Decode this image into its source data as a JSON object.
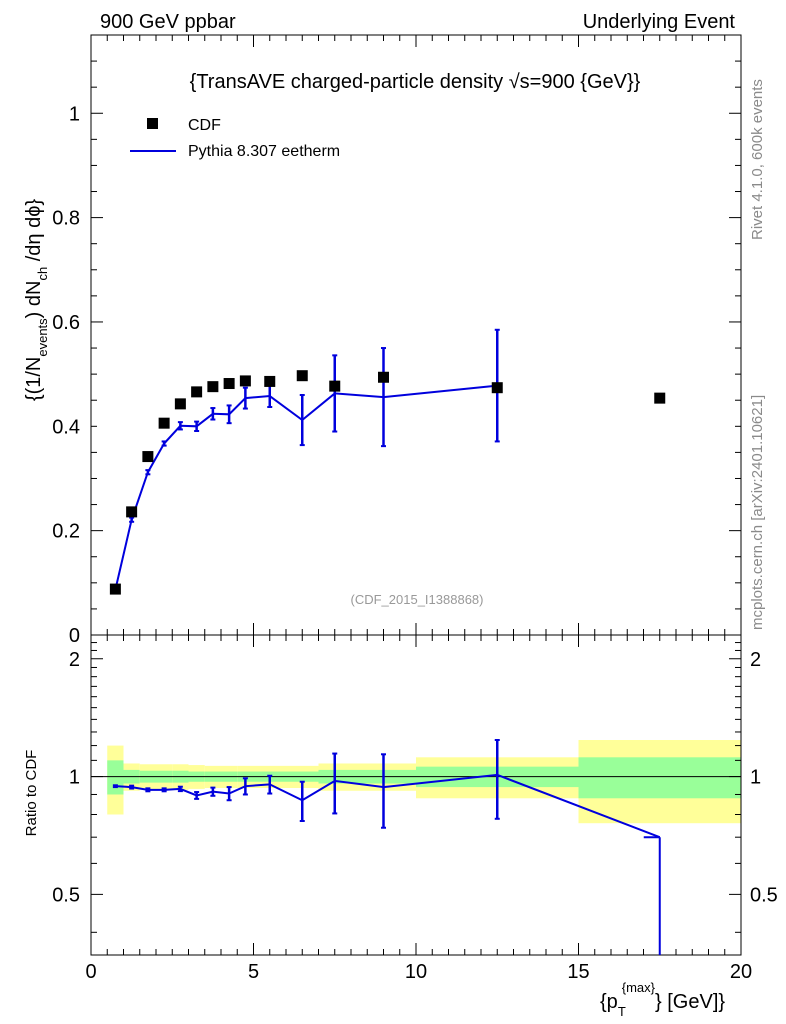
{
  "header": {
    "left": "900 GeV ppbar",
    "right": "Underlying Event"
  },
  "side": {
    "rivet": "Rivet 4.1.0,  600k events",
    "mcplots": "mcplots.cern.ch [arXiv:2401.10621]"
  },
  "chart_data": {
    "type": "scatter",
    "title": "{TransAVE charged-particle density √s=900 {GeV}}",
    "analysis_id": "(CDF_2015_I1388868)",
    "xlabel": "{p_T^{max}} [GeV]",
    "xlabel_parts": {
      "open": "{p",
      "sub": "T",
      "sup": "{max}",
      "close": "} [GeV]}"
    },
    "ylabel": "{(1/N_events) dN_ch /dη dϕ}",
    "ylabel_parts": {
      "a": "{(1/N",
      "b": "events",
      "c": ") dN",
      "d": "ch",
      "e": " /dη  dϕ}"
    },
    "ratio_ylabel": "Ratio to CDF",
    "xlim": [
      0,
      20
    ],
    "ylim": [
      0,
      1.15
    ],
    "ratio_ylim": [
      0.35,
      2.3
    ],
    "x_ticks": [
      "0",
      "5",
      "10",
      "15",
      "20"
    ],
    "y_ticks": [
      "0",
      "0.2",
      "0.4",
      "0.6",
      "0.8",
      "1"
    ],
    "ratio_ticks": [
      "0.5",
      "1",
      "2"
    ],
    "legend": [
      {
        "name": "CDF",
        "marker": "square",
        "color": "#000000"
      },
      {
        "name": "Pythia 8.307 eetherm",
        "marker": "line",
        "color": "#0000dd"
      }
    ],
    "data": {
      "name": "CDF",
      "x": [
        0.75,
        1.25,
        1.75,
        2.25,
        2.75,
        3.25,
        3.75,
        4.25,
        4.75,
        5.5,
        6.5,
        7.5,
        9.0,
        12.5,
        17.5
      ],
      "y": [
        0.088,
        0.236,
        0.342,
        0.406,
        0.443,
        0.466,
        0.476,
        0.482,
        0.487,
        0.486,
        0.497,
        0.477,
        0.494,
        0.474,
        0.454
      ]
    },
    "mc": {
      "name": "Pythia 8.307 eetherm",
      "x": [
        0.75,
        1.25,
        1.75,
        2.25,
        2.75,
        3.25,
        3.75,
        4.25,
        4.75,
        5.5,
        6.5,
        7.5,
        9.0,
        12.5
      ],
      "y": [
        0.087,
        0.221,
        0.312,
        0.367,
        0.401,
        0.4,
        0.424,
        0.423,
        0.454,
        0.458,
        0.412,
        0.463,
        0.456,
        0.478
      ],
      "yerr": [
        0.002,
        0.004,
        0.004,
        0.004,
        0.007,
        0.009,
        0.011,
        0.017,
        0.02,
        0.021,
        0.048,
        0.073,
        0.094,
        0.107
      ]
    },
    "ratio": {
      "mc_x": [
        0.75,
        1.25,
        1.75,
        2.25,
        2.75,
        3.25,
        3.75,
        4.25,
        4.75,
        5.5,
        6.5,
        7.5,
        9.0,
        12.5,
        17.5
      ],
      "mc_y": [
        0.945,
        0.94,
        0.925,
        0.925,
        0.93,
        0.895,
        0.915,
        0.905,
        0.945,
        0.955,
        0.87,
        0.975,
        0.94,
        1.01,
        0.7
      ],
      "mc_err": [
        0.005,
        0.008,
        0.008,
        0.008,
        0.012,
        0.018,
        0.022,
        0.035,
        0.045,
        0.05,
        0.1,
        0.17,
        0.2,
        0.23,
        0
      ],
      "last_drop_to": 0.35,
      "bands": [
        {
          "x": [
            0.5,
            1.0
          ],
          "g": 0.1,
          "yl": 0.2
        },
        {
          "x": [
            1.0,
            1.5
          ],
          "g": 0.04,
          "yl": 0.08
        },
        {
          "x": [
            1.5,
            2.0
          ],
          "g": 0.035,
          "yl": 0.075
        },
        {
          "x": [
            2.0,
            2.5
          ],
          "g": 0.035,
          "yl": 0.075
        },
        {
          "x": [
            2.5,
            3.0
          ],
          "g": 0.035,
          "yl": 0.075
        },
        {
          "x": [
            3.0,
            3.5
          ],
          "g": 0.03,
          "yl": 0.07
        },
        {
          "x": [
            3.5,
            4.0
          ],
          "g": 0.03,
          "yl": 0.065
        },
        {
          "x": [
            4.0,
            4.5
          ],
          "g": 0.03,
          "yl": 0.065
        },
        {
          "x": [
            4.5,
            5.0
          ],
          "g": 0.03,
          "yl": 0.065
        },
        {
          "x": [
            5.0,
            6.0
          ],
          "g": 0.03,
          "yl": 0.065
        },
        {
          "x": [
            6.0,
            7.0
          ],
          "g": 0.03,
          "yl": 0.065
        },
        {
          "x": [
            7.0,
            8.0
          ],
          "g": 0.04,
          "yl": 0.08
        },
        {
          "x": [
            8.0,
            10.0
          ],
          "g": 0.04,
          "yl": 0.08
        },
        {
          "x": [
            10.0,
            15.0
          ],
          "g": 0.06,
          "yl": 0.12
        },
        {
          "x": [
            15.0,
            20.0
          ],
          "g": 0.12,
          "yl": 0.24
        }
      ]
    }
  }
}
